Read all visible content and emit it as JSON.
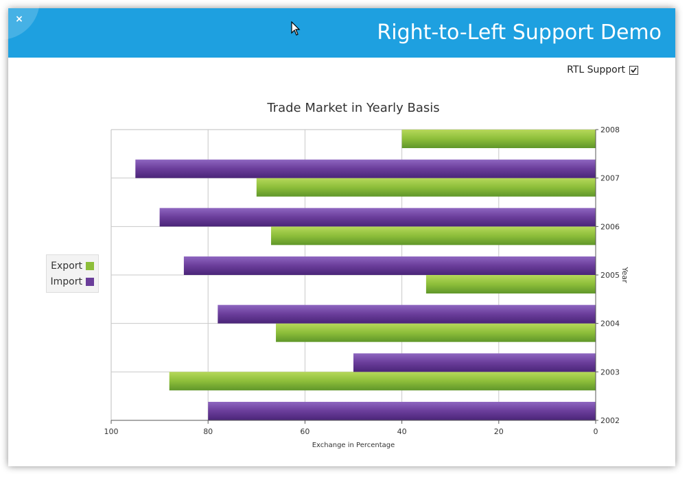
{
  "window": {
    "title": "Right-to-Left Support Demo",
    "close_icon": "×",
    "accent_color": "#1ea0e0"
  },
  "controls": {
    "rtl_label": "RTL Support",
    "rtl_checked": true
  },
  "chart_data": {
    "type": "bar",
    "orientation": "horizontal",
    "title": "Trade Market in Yearly Basis",
    "xlabel": "Exchange in Percentage",
    "ylabel": "Year",
    "x_reversed": true,
    "xlim": [
      0,
      100
    ],
    "x_ticks": [
      100,
      80,
      60,
      40,
      20,
      0
    ],
    "y_ticks": [
      "2008",
      "2007",
      "2006",
      "2005",
      "2004",
      "2003",
      "2002"
    ],
    "grid": true,
    "legend_position": "left",
    "series": [
      {
        "name": "Export",
        "color": "#8dbe3a",
        "points": [
          {
            "year": 2008,
            "value": 40
          },
          {
            "year": 2007,
            "value": 70
          },
          {
            "year": 2006,
            "value": 67
          },
          {
            "year": 2005,
            "value": 35
          },
          {
            "year": 2004,
            "value": 66
          },
          {
            "year": 2003,
            "value": 88
          }
        ]
      },
      {
        "name": "Import",
        "color": "#6a3d9a",
        "points": [
          {
            "year": 2007,
            "value": 95
          },
          {
            "year": 2006,
            "value": 90
          },
          {
            "year": 2005,
            "value": 85
          },
          {
            "year": 2004,
            "value": 78
          },
          {
            "year": 2003,
            "value": 50
          },
          {
            "year": 2002,
            "value": 80
          }
        ]
      }
    ]
  }
}
